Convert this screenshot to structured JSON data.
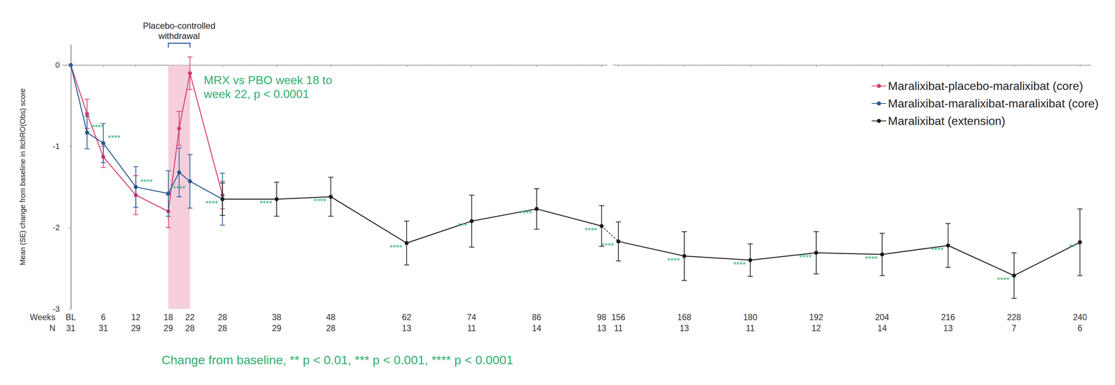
{
  "chart_data": {
    "type": "line",
    "y_label": "Mean (SE) change from baseline in ItchRO(Obs) score",
    "x_label": "Weeks",
    "n_label": "N",
    "n": [
      31,
      31,
      29,
      29,
      28,
      28,
      29,
      28,
      13,
      11,
      14,
      13,
      11,
      13,
      11,
      12,
      14,
      13,
      7,
      6
    ],
    "xlim": [
      -1.5,
      242
    ],
    "x_break": [
      99,
      155
    ],
    "xticks": [
      {
        "value": 0,
        "label": "BL"
      },
      6,
      12,
      18,
      22,
      28,
      38,
      48,
      62,
      74,
      86,
      98,
      156,
      168,
      180,
      192,
      204,
      216,
      228,
      240
    ],
    "ylim": [
      -3,
      0.25
    ],
    "yticks": [
      -3,
      -2,
      -1,
      0
    ],
    "grid": false,
    "legend": "upper right",
    "marker": "circle",
    "reference_line": 0,
    "shaded_region": {
      "x": [
        18,
        22
      ],
      "y": [
        -3,
        0
      ],
      "label": "Placebo-controlled\nwithdrawal",
      "color": "#f6c6d6"
    },
    "annotations": [
      "MRX vs PBO week 18 to\nweek 22, p < 0.0001"
    ],
    "footnote": "Change from baseline, ** p < 0.01, *** p < 0.001, **** p < 0.0001",
    "annotation_color": "#2eae6e",
    "series": [
      {
        "name": "Maralixibat-placebo-maralixibat (core)",
        "color": "#d33b6f",
        "x": [
          0,
          3,
          6,
          12,
          18,
          20,
          22,
          28
        ],
        "values": [
          0,
          -0.6,
          -1.13,
          -1.6,
          -1.8,
          -0.78,
          -0.1,
          -1.6
        ],
        "se": [
          null,
          0.18,
          0.13,
          0.24,
          0.2,
          0.21,
          0.2,
          0.17
        ]
      },
      {
        "name": "Maralixibat-maralixibat-maralixibat (core)",
        "color": "#22568f",
        "x": [
          0,
          3,
          6,
          12,
          18,
          20,
          22,
          28
        ],
        "values": [
          0,
          -0.83,
          -0.96,
          -1.5,
          -1.58,
          -1.32,
          -1.43,
          -1.65
        ],
        "se": [
          null,
          0.2,
          0.24,
          0.25,
          0.28,
          0.3,
          0.33,
          0.32
        ],
        "significance": [
          null,
          "****",
          "****",
          "****",
          "****",
          null,
          null,
          null
        ]
      },
      {
        "name": "Maralixibat (extension)",
        "color": "#1a1a1a",
        "x": [
          28,
          38,
          48,
          62,
          74,
          86,
          98,
          156,
          168,
          180,
          192,
          204,
          216,
          228,
          240
        ],
        "values": [
          -1.65,
          -1.65,
          -1.62,
          -2.19,
          -1.92,
          -1.77,
          -1.98,
          -2.17,
          -2.35,
          -2.4,
          -2.31,
          -2.33,
          -2.22,
          -2.59,
          -2.18
        ],
        "se": [
          0.2,
          0.21,
          0.24,
          0.27,
          0.32,
          0.25,
          0.25,
          0.24,
          0.3,
          0.2,
          0.26,
          0.26,
          0.27,
          0.28,
          0.41
        ],
        "significance": [
          "****",
          "****",
          "****",
          "****",
          "***",
          "****",
          "****",
          "****",
          "****",
          "****",
          "****",
          "****",
          "****",
          "****",
          "**"
        ]
      }
    ]
  }
}
